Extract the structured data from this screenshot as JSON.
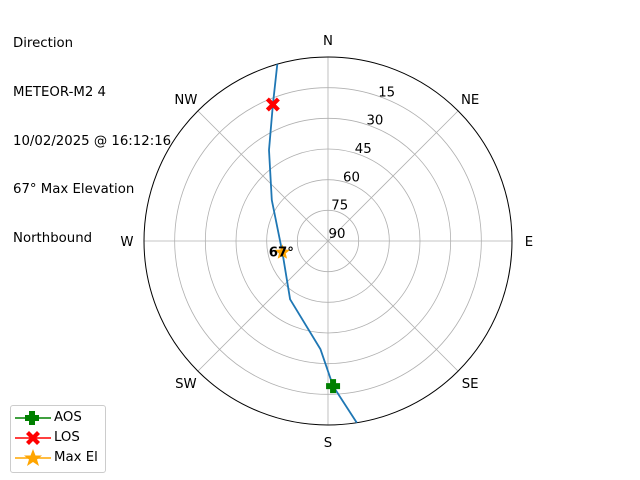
{
  "title_lines": [
    "Direction",
    "METEOR-M2 4",
    "10/02/2025 @ 16:12:16",
    "67° Max Elevation",
    "Northbound"
  ],
  "chart_data": {
    "type": "polar",
    "direction": "clockwise",
    "zero_location": "N",
    "radial_axis": "elevation (inverted: 90 at center, 0 at edge)",
    "rlim": [
      0,
      90
    ],
    "radial_ticks": [
      15,
      30,
      45,
      60,
      75,
      90
    ],
    "angular_ticks": [
      {
        "az": 0,
        "label": "N"
      },
      {
        "az": 45,
        "label": "NE"
      },
      {
        "az": 90,
        "label": "E"
      },
      {
        "az": 135,
        "label": "SE"
      },
      {
        "az": 180,
        "label": "S"
      },
      {
        "az": 225,
        "label": "SW"
      },
      {
        "az": 270,
        "label": "W"
      },
      {
        "az": 315,
        "label": "NW"
      }
    ],
    "grid": true,
    "track": {
      "color": "#1f77b4",
      "points": [
        {
          "az": 171,
          "el": 0
        },
        {
          "az": 178,
          "el": 19
        },
        {
          "az": 184,
          "el": 37
        },
        {
          "az": 213,
          "el": 56
        },
        {
          "az": 256,
          "el": 67
        },
        {
          "az": 306,
          "el": 56
        },
        {
          "az": 327,
          "el": 37
        },
        {
          "az": 338,
          "el": 18
        },
        {
          "az": 344,
          "el": 0
        }
      ]
    },
    "markers": [
      {
        "name": "AOS",
        "az": 178,
        "el": 19,
        "color": "#008000",
        "shape": "plus"
      },
      {
        "name": "LOS",
        "az": 338,
        "el": 18,
        "color": "#ff0000",
        "shape": "x"
      },
      {
        "name": "Max El",
        "az": 256,
        "el": 67,
        "color": "#ffa500",
        "shape": "star",
        "annotation": "67°"
      }
    ],
    "legend_placement": "lower-left"
  }
}
